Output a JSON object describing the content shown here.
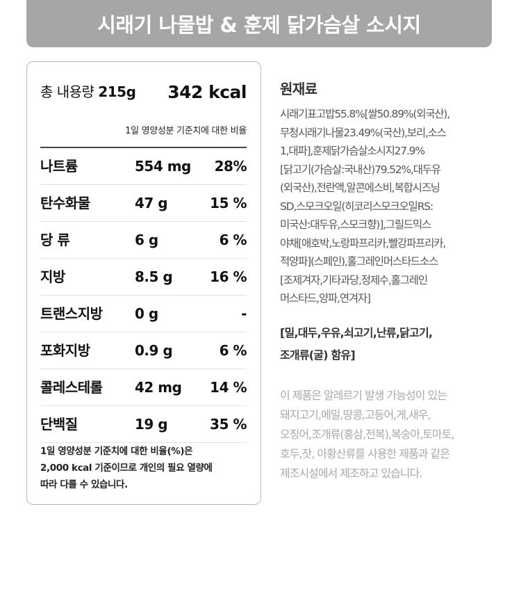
{
  "title": "시래기 나물밥 & 훈제 닭가슴살 소시지",
  "nutrition": {
    "total_label": "총 내용량",
    "total_amount": "215g",
    "kcal": "342 kcal",
    "ratio_note": "1일 영양성분 기준치에 대한 비율",
    "rows": [
      {
        "name": "나트륨",
        "amount": "554 mg",
        "percent": "28%"
      },
      {
        "name": "탄수화물",
        "amount": "47 g",
        "percent": "15 %"
      },
      {
        "name": "당 류",
        "amount": "6 g",
        "percent": "6 %"
      },
      {
        "name": "지방",
        "amount": "8.5 g",
        "percent": "16 %"
      },
      {
        "name": "트랜스지방",
        "amount": "0 g",
        "percent": "-"
      },
      {
        "name": "포화지방",
        "amount": "0.9 g",
        "percent": "6 %"
      },
      {
        "name": "콜레스테롤",
        "amount": "42 mg",
        "percent": "14 %"
      },
      {
        "name": "단백질",
        "amount": "19 g",
        "percent": "35 %"
      }
    ],
    "footnote": [
      "1일 영양성분 기준치에 대한 비율(%)은",
      "2,000 kcal 기준이므로 개인의 필요 열량에",
      "따라 다를 수 있습니다."
    ]
  },
  "ingredients": {
    "title": "원재료",
    "lines": [
      "시래기표고밥55.8%[쌀50.89%(외국산),",
      "무청시래기나물23.49%(국산),보리,소스",
      "1,대파],훈제닭가슴살소시지27.9%",
      "[닭고기(가슴살:국내산)79.52%,대두유",
      "(외국산),전란액,알콘에스비,복합시즈닝",
      "SD,스모크오일(히코리스모크오일RS:",
      "미국산:대두유,스모크향)],그릴드믹스",
      "야채[애호박,노랑파프리카,빨강파프리카,",
      "적양파](스페인),홀그레인머스타드소스",
      "[조제겨자,기타과당,정제수,홀그레인",
      "머스타드,양파,연겨자]"
    ],
    "allergen_lines": [
      "[밀,대두,우유,쇠고기,난류,닭고기,",
      "조개류(굴) 함유]"
    ],
    "facility_lines": [
      "이 제품은 알레르기 발생 가능성이 있는",
      "돼지고기,메밀,땅콩,고등어,게,새우,",
      "오징어,조개류(홍삼,전복),복숭아,토마토,",
      "호두,잣, 아황산류를 사용한 제품과 같은",
      "제조시설에서 제조하고 있습니다."
    ]
  }
}
